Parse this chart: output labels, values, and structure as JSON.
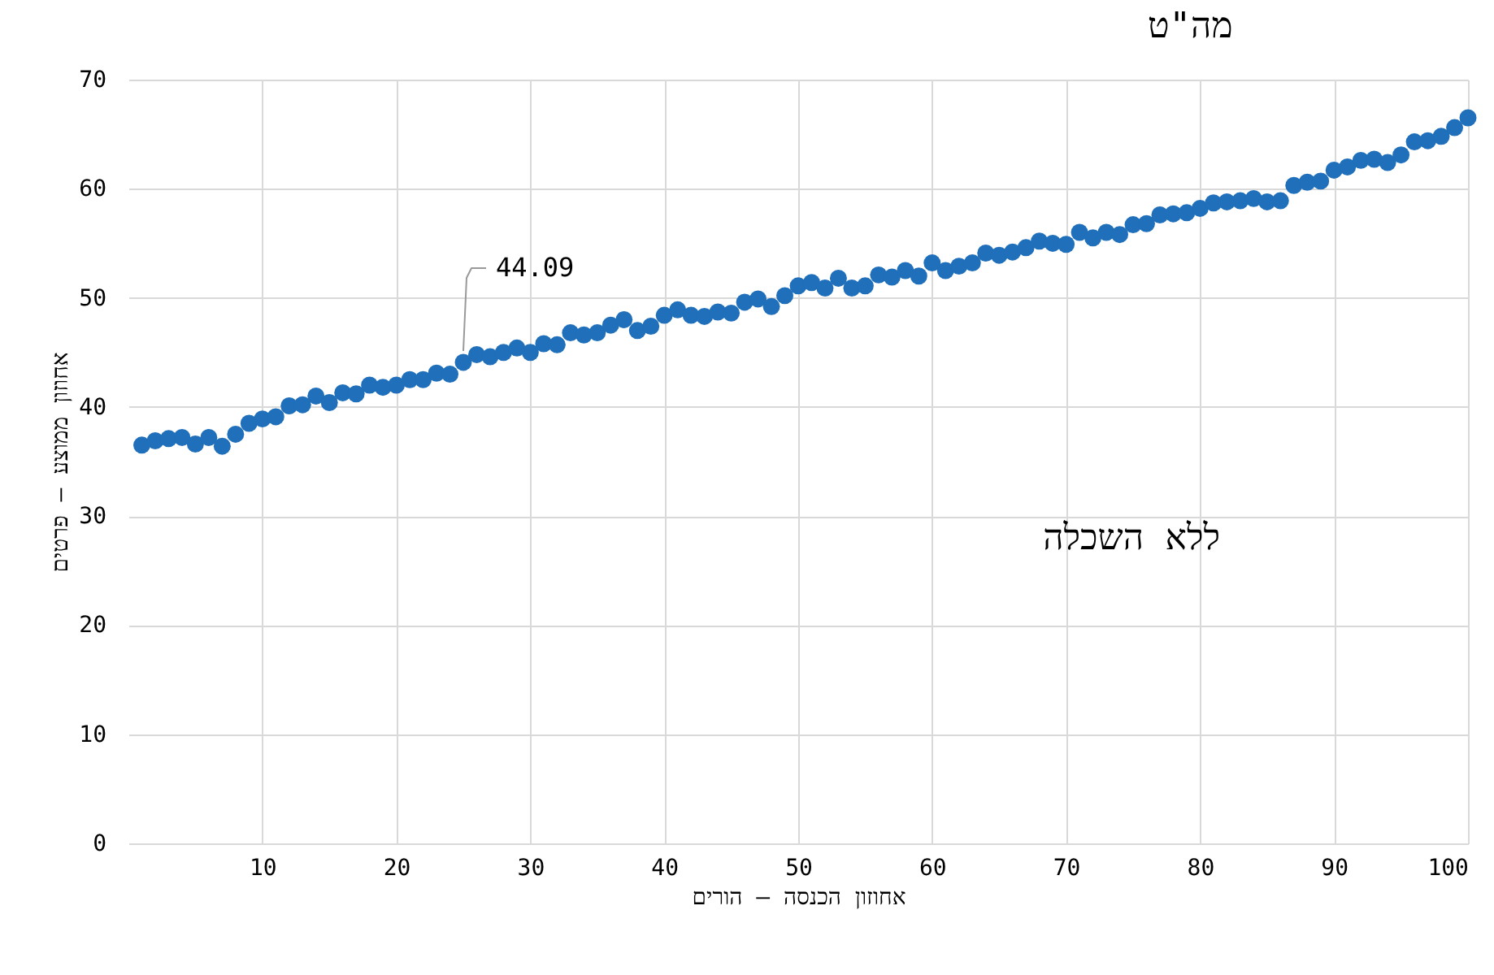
{
  "chart_data": {
    "type": "scatter",
    "title": "מה\"ט",
    "xlabel": "אחוזון הכנסה – הורים",
    "ylabel": "אחוזון ממוצע – פרטים",
    "annotations": [
      "ללא השכלה",
      {
        "text": "44.09",
        "x": 25,
        "y": 44.09
      }
    ],
    "x": [
      1,
      2,
      3,
      4,
      5,
      6,
      7,
      8,
      9,
      10,
      11,
      12,
      13,
      14,
      15,
      16,
      17,
      18,
      19,
      20,
      21,
      22,
      23,
      24,
      25,
      26,
      27,
      28,
      29,
      30,
      31,
      32,
      33,
      34,
      35,
      36,
      37,
      38,
      39,
      40,
      41,
      42,
      43,
      44,
      45,
      46,
      47,
      48,
      49,
      50,
      51,
      52,
      53,
      54,
      55,
      56,
      57,
      58,
      59,
      60,
      61,
      62,
      63,
      64,
      65,
      66,
      67,
      68,
      69,
      70,
      71,
      72,
      73,
      74,
      75,
      76,
      77,
      78,
      79,
      80,
      81,
      82,
      83,
      84,
      85,
      86,
      87,
      88,
      89,
      90,
      91,
      92,
      93,
      94,
      95,
      96,
      97,
      98,
      99,
      100
    ],
    "series": [
      {
        "color": "#1f6fba",
        "values": [
          36.5,
          36.9,
          37.1,
          37.2,
          36.6,
          37.2,
          36.4,
          37.5,
          38.5,
          38.9,
          39.1,
          40.1,
          40.2,
          41.0,
          40.4,
          41.3,
          41.2,
          42.0,
          41.8,
          42.0,
          42.5,
          42.5,
          43.1,
          43.0,
          44.09,
          44.8,
          44.6,
          45.0,
          45.4,
          45.0,
          45.8,
          45.7,
          46.8,
          46.6,
          46.8,
          47.5,
          48.0,
          47.0,
          47.4,
          48.4,
          48.9,
          48.4,
          48.3,
          48.7,
          48.6,
          49.6,
          49.9,
          49.2,
          50.2,
          51.1,
          51.4,
          50.9,
          51.8,
          50.9,
          51.1,
          52.1,
          51.9,
          52.5,
          52.0,
          53.2,
          52.5,
          52.9,
          53.2,
          54.1,
          53.9,
          54.2,
          54.6,
          55.2,
          55.0,
          54.9,
          56.0,
          55.5,
          56.0,
          55.8,
          56.7,
          56.8,
          57.6,
          57.7,
          57.8,
          58.2,
          58.7,
          58.8,
          58.9,
          59.1,
          58.8,
          58.9,
          60.3,
          60.6,
          60.7,
          61.7,
          62.0,
          62.6,
          62.7,
          62.4,
          63.1,
          64.3,
          64.4,
          64.8,
          65.6,
          66.5
        ]
      }
    ],
    "xlim": [
      0,
      100
    ],
    "xticks": [
      10,
      20,
      30,
      40,
      50,
      60,
      70,
      80,
      90,
      100
    ],
    "ylim": [
      0,
      70
    ],
    "yticks": [
      0,
      10,
      20,
      30,
      40,
      50,
      60,
      70
    ],
    "grid": true,
    "marker": "circle"
  }
}
